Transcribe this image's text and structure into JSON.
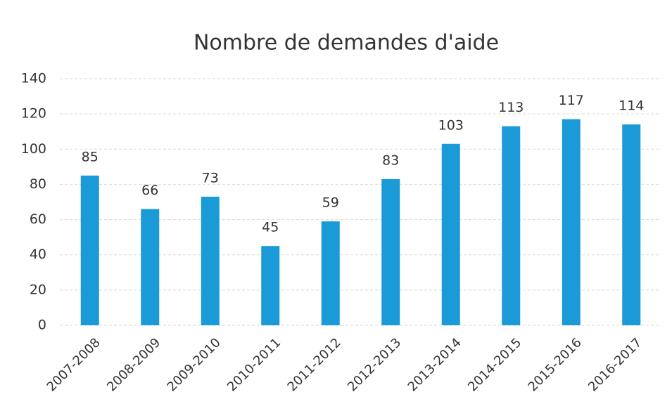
{
  "chart_data": {
    "type": "bar",
    "title": "Nombre de demandes d'aide",
    "categories": [
      "2007-2008",
      "2008-2009",
      "2009-2010",
      "2010-2011",
      "2011-2012",
      "2012-2013",
      "2013-2014",
      "2014-2015",
      "2015-2016",
      "2016-2017"
    ],
    "values": [
      85,
      66,
      73,
      45,
      59,
      83,
      103,
      113,
      117,
      114
    ],
    "color": "#1a9ad6",
    "ylim": [
      0,
      140
    ],
    "yticks": [
      0,
      20,
      40,
      60,
      80,
      100,
      120,
      140
    ],
    "grid": true
  }
}
